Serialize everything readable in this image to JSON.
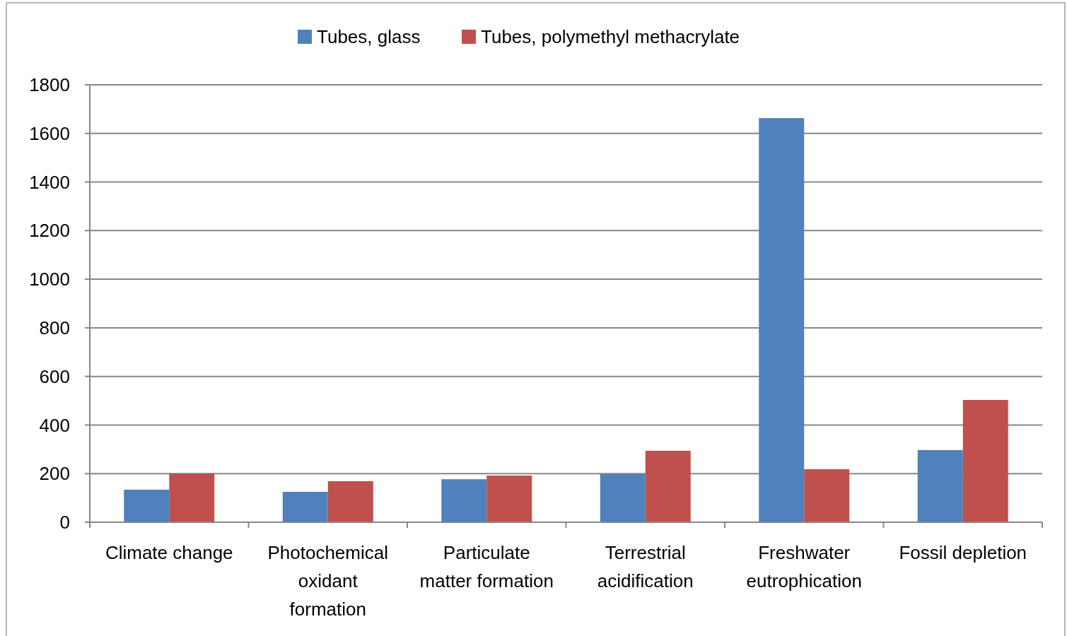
{
  "chart_data": {
    "type": "bar",
    "categories": [
      "Climate change",
      "Photochemical oxidant formation",
      "Particulate matter formation",
      "Terrestrial acidification",
      "Freshwater eutrophication",
      "Fossil depletion"
    ],
    "series": [
      {
        "name": "Tubes, glass",
        "color": "#4f81bd",
        "values": [
          134,
          125,
          177,
          198,
          1663,
          297
        ]
      },
      {
        "name": "Tubes, polymethyl methacrylate",
        "color": "#c0504d",
        "values": [
          200,
          169,
          192,
          294,
          218,
          503
        ]
      }
    ],
    "ylim": [
      0,
      1800
    ],
    "yticks": [
      0,
      200,
      400,
      600,
      800,
      1000,
      1200,
      1400,
      1600,
      1800
    ],
    "grid": "y",
    "legend": "top"
  }
}
